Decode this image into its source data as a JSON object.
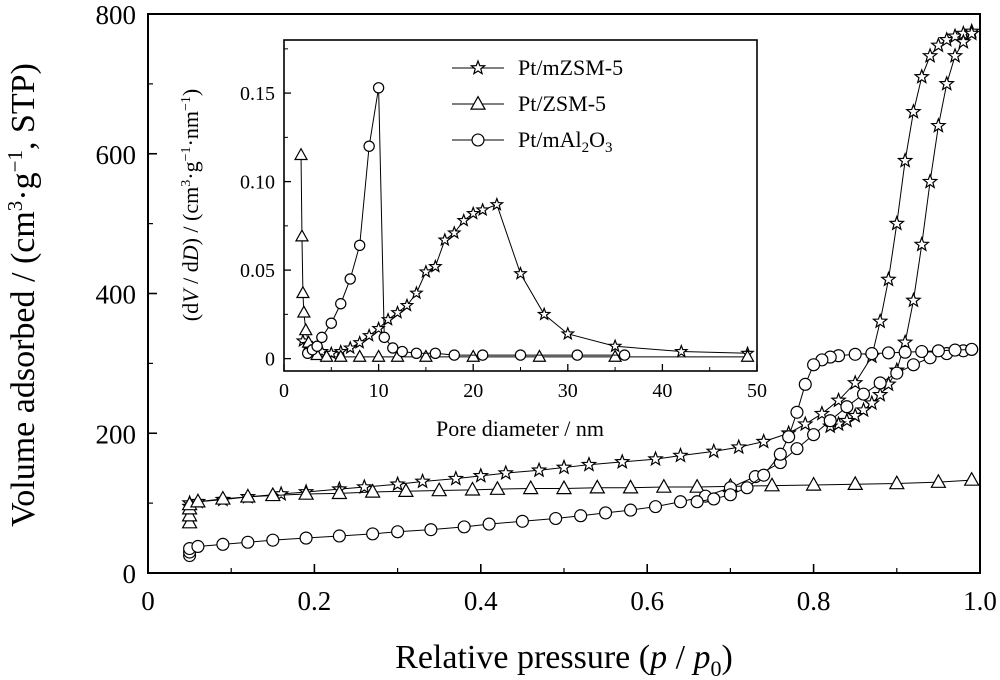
{
  "chart_data": [
    {
      "type": "scatter",
      "role": "main",
      "xlabel": {
        "main": "Relative pressure (",
        "v1": "p",
        "sep": " / ",
        "v2": "p",
        "sub": "0",
        "close": ")"
      },
      "ylabel": {
        "pre": "Volume adsorbed / (cm",
        "sup1": "3",
        "mid": "·g",
        "sup2": "−1",
        "post": ", STP)"
      },
      "xlim": [
        0,
        1.0
      ],
      "ylim": [
        0,
        800
      ],
      "xticks": [
        "0",
        "0.2",
        "0.4",
        "0.6",
        "0.8",
        "1.0"
      ],
      "yticks": [
        "0",
        "200",
        "400",
        "600",
        "800"
      ],
      "grid": false,
      "series": [
        {
          "name": "Pt/mZSM-5",
          "marker": "star",
          "segments": [
            {
              "x": [
                0.05,
                0.05,
                0.06,
                0.09,
                0.12,
                0.16,
                0.19,
                0.23,
                0.26,
                0.3,
                0.33,
                0.37,
                0.4,
                0.43,
                0.47,
                0.5,
                0.53,
                0.57,
                0.61,
                0.64,
                0.68,
                0.71,
                0.74,
                0.77,
                0.79,
                0.81,
                0.83,
                0.85,
                0.87,
                0.88,
                0.89,
                0.9,
                0.91,
                0.92,
                0.93,
                0.94,
                0.95,
                0.96,
                0.97,
                0.98,
                0.99
              ],
              "y": [
                95,
                100,
                102,
                105,
                109,
                113,
                116,
                120,
                123,
                127,
                131,
                135,
                139,
                143,
                147,
                151,
                155,
                159,
                163,
                168,
                174,
                180,
                188,
                200,
                213,
                228,
                247,
                272,
                310,
                360,
                420,
                500,
                590,
                660,
                710,
                740,
                755,
                763,
                768,
                772,
                775
              ]
            },
            {
              "x": [
                0.99,
                0.98,
                0.97,
                0.96,
                0.95,
                0.94,
                0.93,
                0.92,
                0.91,
                0.9,
                0.89,
                0.88,
                0.87,
                0.86,
                0.85,
                0.84,
                0.83,
                0.82
              ],
              "y": [
                772,
                760,
                740,
                700,
                640,
                560,
                470,
                390,
                330,
                290,
                270,
                255,
                243,
                233,
                225,
                218,
                213,
                210
              ]
            }
          ]
        },
        {
          "name": "Pt/ZSM-5",
          "marker": "triangle",
          "segments": [
            {
              "x": [
                0.05,
                0.05,
                0.05,
                0.05,
                0.06,
                0.09,
                0.12,
                0.15,
                0.19,
                0.23,
                0.27,
                0.31,
                0.35,
                0.39,
                0.42,
                0.46,
                0.5,
                0.54,
                0.58,
                0.62,
                0.66,
                0.7,
                0.75,
                0.8,
                0.85,
                0.9,
                0.95,
                0.99
              ],
              "y": [
                72,
                82,
                92,
                98,
                102,
                106,
                109,
                111,
                113,
                114,
                116,
                117,
                118,
                119,
                120,
                121,
                121,
                122,
                122,
                123,
                123,
                124,
                125,
                126,
                127,
                128,
                130,
                133
              ]
            }
          ]
        },
        {
          "name": "Pt/mAl2O3",
          "marker": "circle",
          "segments": [
            {
              "x": [
                0.05,
                0.05,
                0.05,
                0.06,
                0.09,
                0.12,
                0.15,
                0.19,
                0.23,
                0.27,
                0.3,
                0.34,
                0.38,
                0.41,
                0.45,
                0.49,
                0.52,
                0.55,
                0.58,
                0.61,
                0.64,
                0.67,
                0.7,
                0.73,
                0.76,
                0.78,
                0.8,
                0.82,
                0.84,
                0.86,
                0.88,
                0.9,
                0.92,
                0.94,
                0.96,
                0.98,
                0.99
              ],
              "y": [
                25,
                30,
                35,
                38,
                41,
                44,
                47,
                50,
                53,
                56,
                59,
                62,
                66,
                70,
                74,
                78,
                82,
                86,
                90,
                95,
                102,
                110,
                122,
                138,
                158,
                178,
                198,
                218,
                238,
                256,
                272,
                286,
                298,
                308,
                314,
                318,
                320
              ]
            },
            {
              "x": [
                0.99,
                0.97,
                0.95,
                0.93,
                0.91,
                0.89,
                0.87,
                0.85,
                0.83,
                0.82,
                0.81,
                0.8,
                0.79,
                0.78,
                0.77,
                0.76,
                0.74,
                0.72,
                0.7,
                0.68,
                0.66
              ],
              "y": [
                320,
                319,
                318,
                317,
                316,
                315,
                314,
                313,
                311,
                309,
                305,
                298,
                270,
                230,
                195,
                170,
                140,
                122,
                112,
                106,
                102
              ]
            }
          ]
        }
      ]
    },
    {
      "type": "line",
      "role": "inset",
      "xlabel": "Pore diameter / nm",
      "ylabel": {
        "pre": "(d",
        "v": "V",
        "mid": " / d",
        "d": "D",
        "unit": ") / (cm",
        "sup1": "3",
        "mid2": "·g",
        "sup2": "−1",
        "mid3": "·nm",
        "sup3": "−1",
        "post": ")"
      },
      "xlim": [
        0,
        50
      ],
      "ylim": [
        -0.007,
        0.18
      ],
      "xticks": [
        "0",
        "10",
        "20",
        "30",
        "40",
        "50"
      ],
      "yticks": [
        "0",
        "0.05",
        "0.10",
        "0.15"
      ],
      "tick_values_x": [
        0,
        10,
        20,
        30,
        40,
        50
      ],
      "tick_values_y": [
        0,
        0.05,
        0.1,
        0.15
      ],
      "legend": {
        "placement": "top-center",
        "entries": [
          {
            "marker": "star",
            "text": "Pt/mZSM-5"
          },
          {
            "marker": "triangle",
            "text": "Pt/ZSM-5"
          },
          {
            "marker": "circle",
            "pre": "Pt/mAl",
            "sub1": "2",
            "mid": "O",
            "sub2": "3"
          }
        ]
      },
      "series": [
        {
          "name": "Pt/mZSM-5",
          "marker": "star",
          "x": [
            2.0,
            2.5,
            3.0,
            4.0,
            5.0,
            6.0,
            7.0,
            8.0,
            9.0,
            10.0,
            11.0,
            12.0,
            13.0,
            14.0,
            15.0,
            16.0,
            17.0,
            18.0,
            19.0,
            20.0,
            21.0,
            22.5,
            25.0,
            27.5,
            30.0,
            35.0,
            42.0,
            49.0
          ],
          "y": [
            0.01,
            0.008,
            0.006,
            0.004,
            0.003,
            0.004,
            0.006,
            0.009,
            0.013,
            0.017,
            0.022,
            0.026,
            0.03,
            0.037,
            0.049,
            0.052,
            0.067,
            0.071,
            0.078,
            0.082,
            0.084,
            0.087,
            0.048,
            0.025,
            0.014,
            0.007,
            0.004,
            0.003
          ]
        },
        {
          "name": "Pt/ZSM-5",
          "marker": "triangle",
          "x": [
            1.8,
            1.9,
            2.0,
            2.1,
            2.3,
            2.6,
            3.0,
            3.5,
            4.5,
            6.0,
            8.0,
            10.0,
            12.0,
            15.0,
            20.0,
            27.0,
            35.0,
            49.0
          ],
          "y": [
            0.115,
            0.069,
            0.037,
            0.026,
            0.016,
            0.009,
            0.004,
            0.002,
            0.001,
            0.001,
            0.001,
            0.001,
            0.001,
            0.001,
            0.001,
            0.001,
            0.001,
            0.001
          ]
        },
        {
          "name": "Pt/mAl2O3",
          "marker": "circle",
          "x": [
            2.5,
            3.0,
            3.5,
            4.0,
            5.0,
            6.0,
            7.0,
            8.0,
            9.0,
            10.0,
            10.6,
            11.5,
            12.5,
            14.0,
            16.0,
            18.0,
            21.0,
            25.0,
            31.0,
            36.0
          ],
          "y": [
            0.003,
            0.005,
            0.007,
            0.012,
            0.02,
            0.031,
            0.045,
            0.064,
            0.12,
            0.153,
            0.012,
            0.006,
            0.004,
            0.003,
            0.003,
            0.002,
            0.002,
            0.002,
            0.002,
            0.002
          ]
        }
      ]
    }
  ]
}
